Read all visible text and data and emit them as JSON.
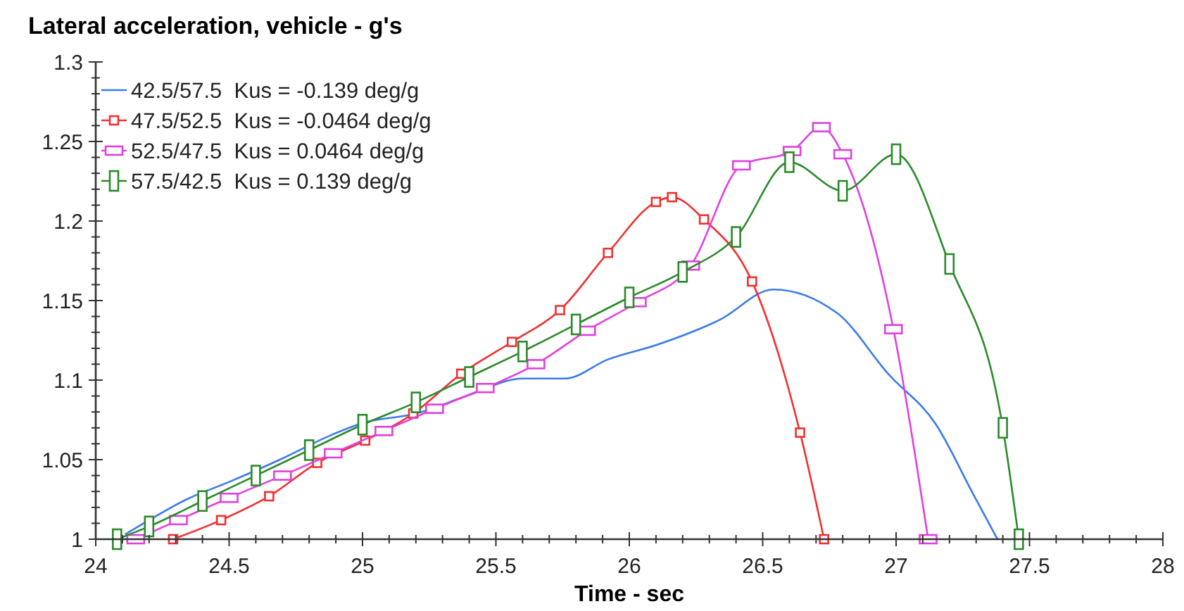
{
  "chart_data": {
    "type": "line",
    "title": "Lateral acceleration, vehicle - g's",
    "xlabel": "Time - sec",
    "xlim": [
      24,
      28
    ],
    "ylim": [
      1,
      1.3
    ],
    "xticks": [
      24,
      {
        "value": 24.1,
        "label": null
      },
      {
        "value": 24.2,
        "label": null
      },
      {
        "value": 24.3,
        "label": null
      },
      {
        "value": 24.4,
        "label": null
      },
      24.5,
      {
        "value": 24.6,
        "label": null
      },
      {
        "value": 24.7,
        "label": null
      },
      {
        "value": 24.8,
        "label": null
      },
      {
        "value": 24.9,
        "label": null
      },
      25,
      {
        "value": 25.1,
        "label": null
      },
      {
        "value": 25.2,
        "label": null
      },
      {
        "value": 25.3,
        "label": null
      },
      {
        "value": 25.4,
        "label": null
      },
      25.5,
      {
        "value": 25.6,
        "label": null
      },
      {
        "value": 25.7,
        "label": null
      },
      {
        "value": 25.8,
        "label": null
      },
      {
        "value": 25.9,
        "label": null
      },
      26,
      {
        "value": 26.1,
        "label": null
      },
      {
        "value": 26.2,
        "label": null
      },
      {
        "value": 26.3,
        "label": null
      },
      {
        "value": 26.4,
        "label": null
      },
      26.5,
      {
        "value": 26.6,
        "label": null
      },
      {
        "value": 26.7,
        "label": null
      },
      {
        "value": 26.8,
        "label": null
      },
      {
        "value": 26.9,
        "label": null
      },
      27,
      {
        "value": 27.1,
        "label": null
      },
      {
        "value": 27.2,
        "label": null
      },
      {
        "value": 27.3,
        "label": null
      },
      {
        "value": 27.4,
        "label": null
      },
      27.5,
      {
        "value": 27.6,
        "label": null
      },
      {
        "value": 27.7,
        "label": null
      },
      {
        "value": 27.8,
        "label": null
      },
      {
        "value": 27.9,
        "label": null
      },
      28
    ],
    "yticks": [
      1,
      {
        "value": 1.01,
        "label": null
      },
      {
        "value": 1.02,
        "label": null
      },
      {
        "value": 1.03,
        "label": null
      },
      {
        "value": 1.04,
        "label": null
      },
      1.05,
      {
        "value": 1.06,
        "label": null
      },
      {
        "value": 1.07,
        "label": null
      },
      {
        "value": 1.08,
        "label": null
      },
      {
        "value": 1.09,
        "label": null
      },
      1.1,
      {
        "value": 1.11,
        "label": null
      },
      {
        "value": 1.12,
        "label": null
      },
      {
        "value": 1.13,
        "label": null
      },
      {
        "value": 1.14,
        "label": null
      },
      1.15,
      {
        "value": 1.16,
        "label": null
      },
      {
        "value": 1.17,
        "label": null
      },
      {
        "value": 1.18,
        "label": null
      },
      {
        "value": 1.19,
        "label": null
      },
      1.2,
      {
        "value": 1.21,
        "label": null
      },
      {
        "value": 1.22,
        "label": null
      },
      {
        "value": 1.23,
        "label": null
      },
      {
        "value": 1.24,
        "label": null
      },
      1.25,
      {
        "value": 1.26,
        "label": null
      },
      {
        "value": 1.27,
        "label": null
      },
      {
        "value": 1.28,
        "label": null
      },
      {
        "value": 1.29,
        "label": null
      },
      1.3
    ],
    "grid": false,
    "legend": "top left",
    "series": [
      {
        "name": "42.5/57.5  Kus = -0.139 deg/g",
        "color": "#3a7bea",
        "marker": "none",
        "x": [
          24.11,
          24.19,
          24.34,
          24.5,
          24.69,
          24.89,
          25,
          25.2,
          25.39,
          25.6,
          25.76,
          25.92,
          26.1,
          26.34,
          26.54,
          26.78,
          26.97,
          27.15,
          27.29,
          27.38
        ],
        "values": [
          1.003,
          1.011,
          1.025,
          1.036,
          1.05,
          1.066,
          1.073,
          1.079,
          1.09,
          1.101,
          1.101,
          1.113,
          1.122,
          1.138,
          1.157,
          1.142,
          1.104,
          1.072,
          1.028,
          1
        ]
      },
      {
        "name": "47.5/52.5  Kus = -0.0464 deg/g",
        "color": "#f03030",
        "marker": "square",
        "x": [
          24.29,
          24.47,
          24.65,
          24.83,
          25.01,
          25.19,
          25.37,
          25.56,
          25.74,
          25.92,
          26.1,
          26.16,
          26.28,
          26.46,
          26.64,
          26.73
        ],
        "values": [
          1,
          1.012,
          1.027,
          1.048,
          1.062,
          1.079,
          1.104,
          1.124,
          1.144,
          1.18,
          1.212,
          1.215,
          1.201,
          1.162,
          1.067,
          1
        ]
      },
      {
        "name": "52.5/47.5  Kus = 0.0464 deg/g",
        "color": "#e040e0",
        "marker": "square",
        "x": [
          24.15,
          24.31,
          24.5,
          24.7,
          24.89,
          25.08,
          25.27,
          25.46,
          25.65,
          25.84,
          26.03,
          26.23,
          26.42,
          26.61,
          26.72,
          26.8,
          26.99,
          27.12
        ],
        "values": [
          1,
          1.012,
          1.026,
          1.04,
          1.054,
          1.068,
          1.082,
          1.095,
          1.11,
          1.131,
          1.149,
          1.172,
          1.235,
          1.244,
          1.259,
          1.242,
          1.132,
          1
        ]
      },
      {
        "name": "57.5/42.5  Kus = 0.139 deg/g",
        "color": "#2a8a2a",
        "marker": "square",
        "x": [
          24.08,
          24.2,
          24.4,
          24.6,
          24.8,
          25,
          25.2,
          25.4,
          25.6,
          25.8,
          26,
          26.2,
          26.4,
          26.6,
          26.8,
          27,
          27.2,
          27.4,
          27.46
        ],
        "values": [
          1,
          1.008,
          1.024,
          1.04,
          1.056,
          1.072,
          1.086,
          1.102,
          1.118,
          1.135,
          1.152,
          1.168,
          1.19,
          1.237,
          1.219,
          1.242,
          1.173,
          1.07,
          1
        ]
      }
    ]
  }
}
